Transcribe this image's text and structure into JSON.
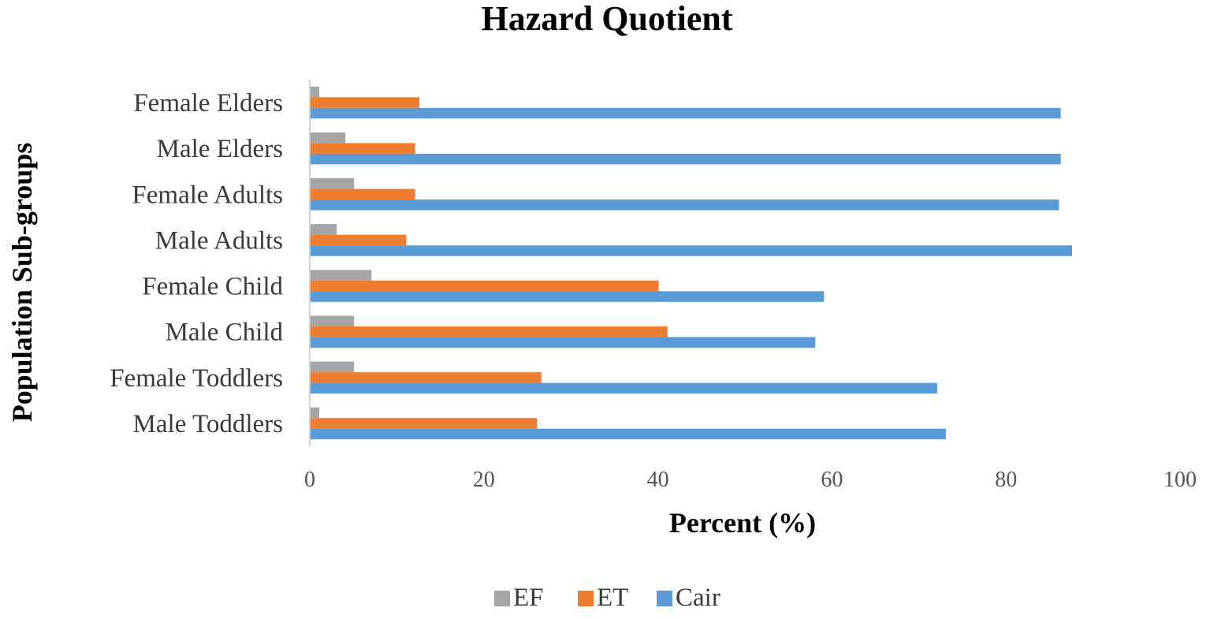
{
  "chart_data": {
    "type": "bar",
    "orientation": "horizontal",
    "title": "Hazard Quotient",
    "xlabel": "Percent (%)",
    "ylabel": "Population Sub-groups",
    "xlim": [
      0,
      100
    ],
    "xticks": [
      "0",
      "20",
      "40",
      "60",
      "80",
      "100"
    ],
    "grid": false,
    "legend_position": "bottom",
    "categories": [
      "Male Toddlers",
      "Female Toddlers",
      "Male Child",
      "Female Child",
      "Male Adults",
      "Female Adults",
      "Male Elders",
      "Female Elders"
    ],
    "series": [
      {
        "name": "EF",
        "color": "#a5a5a5",
        "values": [
          1,
          5,
          5,
          7,
          3,
          5,
          4,
          1
        ]
      },
      {
        "name": "ET",
        "color": "#ed7d31",
        "values": [
          26,
          26.5,
          41,
          40,
          11,
          12,
          12,
          12.5
        ]
      },
      {
        "name": "Cair",
        "color": "#5b9bd5",
        "values": [
          73,
          72,
          58,
          59,
          87.5,
          86,
          86.2,
          86.2
        ]
      }
    ]
  }
}
